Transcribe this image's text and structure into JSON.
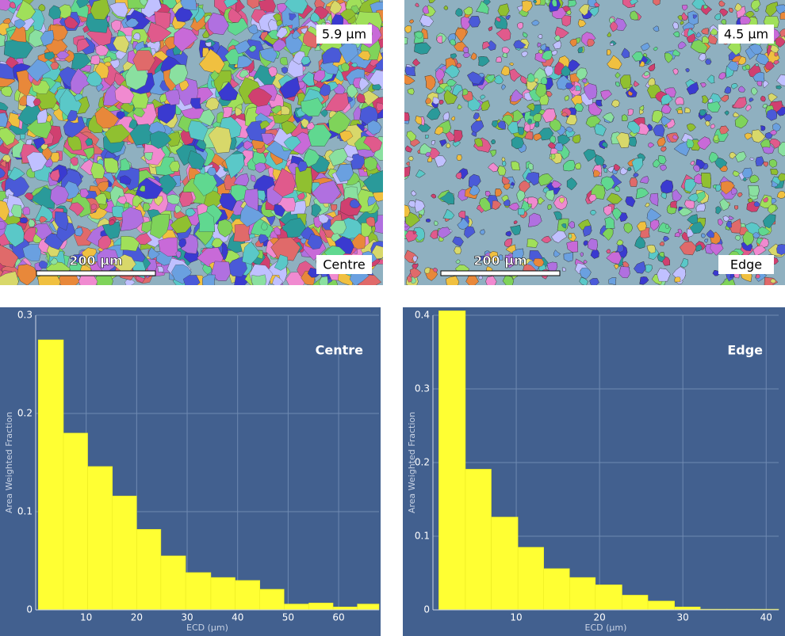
{
  "maps": [
    {
      "size_label": "5.9 μm",
      "scale_label": "200 μm",
      "position_label": "Centre"
    },
    {
      "size_label": "4.5 μm",
      "scale_label": "200 μm",
      "position_label": "Edge"
    }
  ],
  "chart_data": [
    {
      "type": "histogram",
      "annotation": "Centre",
      "xlabel": "ECD (μm)",
      "ylabel": "Area Weighted Fraction",
      "bins": [
        0.5,
        5.5,
        10.3,
        15.2,
        20,
        24.8,
        29.7,
        34.7,
        39.5,
        44.4,
        49.2,
        54.1,
        58.9,
        63.7,
        68
      ],
      "values": [
        0.275,
        0.18,
        0.146,
        0.116,
        0.082,
        0.055,
        0.038,
        0.033,
        0.03,
        0.021,
        0.006,
        0.007,
        0.003,
        0.006
      ],
      "color": "#ffff33",
      "xlim": [
        0,
        68
      ],
      "ylim": [
        0,
        0.3
      ],
      "xticks": [
        10,
        20,
        30,
        40,
        50,
        60
      ],
      "yticks": [
        0,
        0.1,
        0.2,
        0.3
      ],
      "grid": true
    },
    {
      "type": "histogram",
      "annotation": "Edge",
      "xlabel": "ECD (μm)",
      "ylabel": "Area Weighted Fraction",
      "bins": [
        0.7,
        3.9,
        7,
        10.2,
        13.3,
        16.4,
        19.5,
        22.7,
        25.8,
        29,
        32.1,
        35.3,
        38.4,
        41.5
      ],
      "values": [
        0.406,
        0.191,
        0.126,
        0.085,
        0.056,
        0.044,
        0.034,
        0.02,
        0.012,
        0.004,
        0.001,
        0.001,
        0.001
      ],
      "color": "#ffff33",
      "xlim": [
        0,
        41.5
      ],
      "ylim": [
        0,
        0.4
      ],
      "xticks": [
        10,
        20,
        30,
        40
      ],
      "yticks": [
        0,
        0.1,
        0.2,
        0.3,
        0.4
      ],
      "grid": true
    }
  ]
}
